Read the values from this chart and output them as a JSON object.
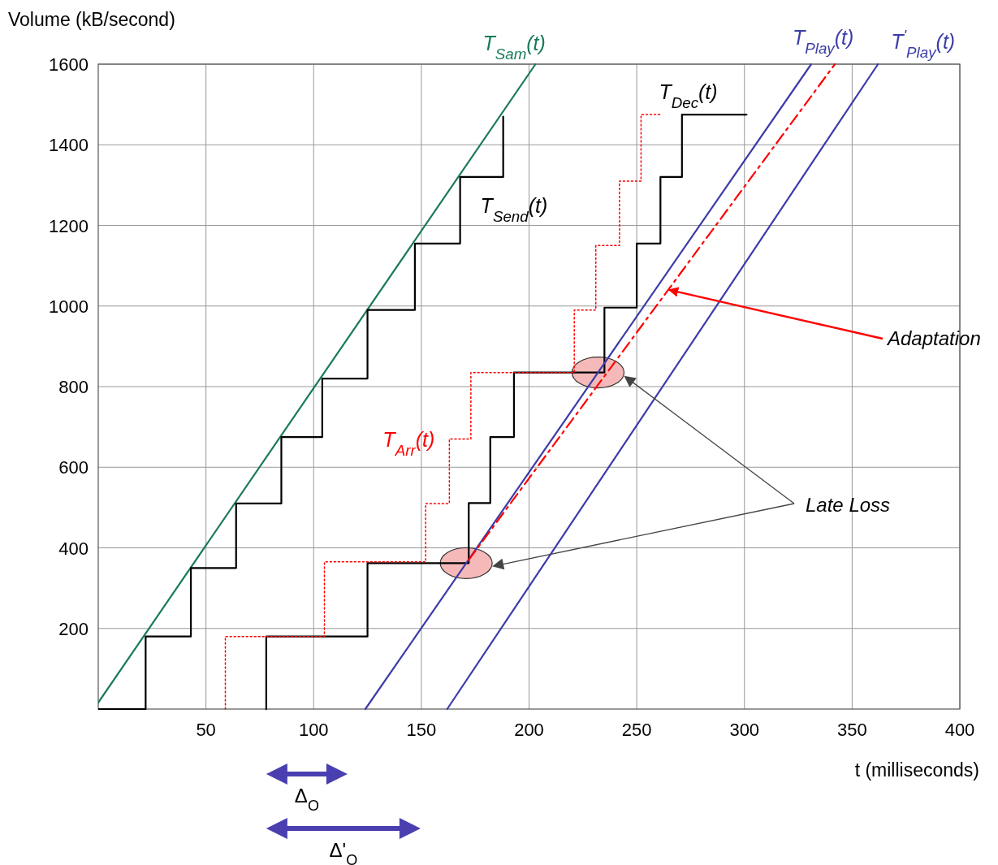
{
  "chart_data": {
    "type": "line",
    "ylabel": "Volume (kB/second)",
    "xlabel": "t (milliseconds)",
    "xlim": [
      0,
      400
    ],
    "ylim": [
      0,
      1600
    ],
    "xticks": [
      50,
      100,
      150,
      200,
      250,
      300,
      350,
      400
    ],
    "yticks": [
      200,
      400,
      600,
      800,
      1000,
      1200,
      1400,
      1600
    ],
    "grid": true,
    "series": [
      {
        "name": "T$_{Sam}$(t)",
        "color": "#1a7a5a",
        "x": [
          0,
          203
        ],
        "values": [
          16,
          1600
        ]
      },
      {
        "name": "T$_{Send}$(t)",
        "type": "step",
        "color": "#000000",
        "x": [
          0,
          22,
          43,
          64,
          85,
          104,
          125,
          147,
          168,
          188
        ],
        "values": [
          0,
          180,
          350,
          510,
          675,
          820,
          990,
          1155,
          1320,
          1470
        ]
      },
      {
        "name": "T$_{Dec}$(t)",
        "type": "step",
        "color": "#000000",
        "x": [
          78,
          78,
          125,
          172,
          182,
          193,
          235,
          250,
          261,
          271,
          301
        ],
        "values": [
          0,
          180,
          362,
          511,
          675,
          835,
          996,
          1155,
          1320,
          1475,
          1475
        ]
      },
      {
        "name": "T$_{Arr}$(t)",
        "type": "step",
        "color": "#ff0000",
        "line_style": "dotted",
        "x": [
          59,
          59,
          105,
          152,
          163,
          173,
          221,
          231,
          242,
          252,
          261
        ],
        "values": [
          0,
          180,
          365,
          510,
          670,
          835,
          990,
          1150,
          1310,
          1475,
          1475
        ]
      },
      {
        "name": "T$_{Play}$(t)",
        "color": "#3c3ca8",
        "x": [
          124,
          331
        ],
        "values": [
          0,
          1600
        ]
      },
      {
        "name": "T$^{'}$$_{Play}$(t)",
        "color": "#3c3ca8",
        "x": [
          162,
          362
        ],
        "values": [
          0,
          1600
        ]
      },
      {
        "color": "#ff0000",
        "line_style": "dashed",
        "x": [
          172,
          342
        ],
        "values": [
          370,
          1600
        ]
      }
    ],
    "annotations": [
      {
        "text": "Adaptation",
        "x": 265,
        "y": 1040
      },
      "Late Loss",
      "Δ$_{O}$",
      "Δ'$_{O}$"
    ]
  }
}
